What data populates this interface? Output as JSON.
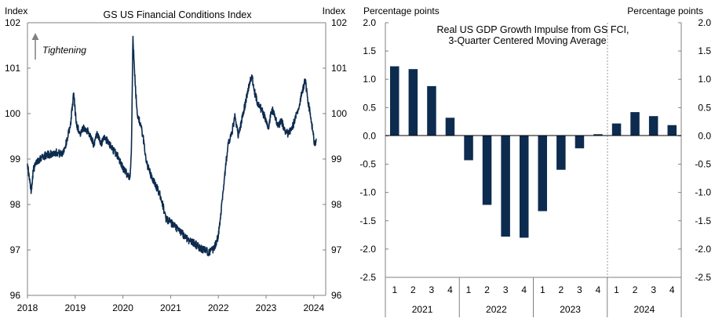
{
  "colors": {
    "series": "#0d2b4e",
    "axis": "#808080",
    "text": "#000000"
  },
  "left_chart": {
    "chart_data": {
      "type": "line",
      "title": "GS US Financial Conditions Index",
      "ylabel_left": "Index",
      "ylabel_right": "Index",
      "annotation": "Tightening",
      "ylim": [
        96,
        102
      ],
      "yticks": [
        96,
        97,
        98,
        99,
        100,
        101,
        102
      ],
      "xlim": [
        2018,
        2024.25
      ],
      "xticks": [
        2018,
        2019,
        2020,
        2021,
        2022,
        2023,
        2024
      ],
      "anchors": [
        [
          2018.0,
          98.9
        ],
        [
          2018.04,
          98.55
        ],
        [
          2018.08,
          98.3
        ],
        [
          2018.12,
          98.75
        ],
        [
          2018.2,
          98.95
        ],
        [
          2018.3,
          99.05
        ],
        [
          2018.45,
          99.1
        ],
        [
          2018.6,
          99.15
        ],
        [
          2018.72,
          99.1
        ],
        [
          2018.8,
          99.3
        ],
        [
          2018.9,
          99.75
        ],
        [
          2018.97,
          100.45
        ],
        [
          2019.02,
          99.8
        ],
        [
          2019.1,
          99.55
        ],
        [
          2019.2,
          99.7
        ],
        [
          2019.3,
          99.55
        ],
        [
          2019.4,
          99.3
        ],
        [
          2019.45,
          99.55
        ],
        [
          2019.55,
          99.3
        ],
        [
          2019.6,
          99.5
        ],
        [
          2019.7,
          99.35
        ],
        [
          2019.8,
          99.2
        ],
        [
          2019.9,
          99.05
        ],
        [
          2020.0,
          98.8
        ],
        [
          2020.1,
          98.65
        ],
        [
          2020.15,
          98.6
        ],
        [
          2020.18,
          99.3
        ],
        [
          2020.21,
          101.7
        ],
        [
          2020.23,
          101.2
        ],
        [
          2020.26,
          100.6
        ],
        [
          2020.3,
          100.0
        ],
        [
          2020.36,
          99.8
        ],
        [
          2020.42,
          99.5
        ],
        [
          2020.5,
          98.9
        ],
        [
          2020.6,
          98.6
        ],
        [
          2020.7,
          98.4
        ],
        [
          2020.8,
          98.15
        ],
        [
          2020.9,
          97.7
        ],
        [
          2021.0,
          97.6
        ],
        [
          2021.1,
          97.5
        ],
        [
          2021.2,
          97.4
        ],
        [
          2021.3,
          97.3
        ],
        [
          2021.4,
          97.2
        ],
        [
          2021.5,
          97.15
        ],
        [
          2021.6,
          97.05
        ],
        [
          2021.7,
          97.0
        ],
        [
          2021.8,
          96.95
        ],
        [
          2021.9,
          97.0
        ],
        [
          2022.0,
          97.3
        ],
        [
          2022.05,
          97.8
        ],
        [
          2022.1,
          98.3
        ],
        [
          2022.15,
          98.8
        ],
        [
          2022.2,
          99.3
        ],
        [
          2022.28,
          99.55
        ],
        [
          2022.35,
          99.95
        ],
        [
          2022.42,
          99.5
        ],
        [
          2022.5,
          99.9
        ],
        [
          2022.58,
          100.3
        ],
        [
          2022.64,
          100.6
        ],
        [
          2022.7,
          100.85
        ],
        [
          2022.75,
          100.5
        ],
        [
          2022.82,
          100.25
        ],
        [
          2022.9,
          100.1
        ],
        [
          2022.98,
          99.9
        ],
        [
          2023.05,
          99.7
        ],
        [
          2023.12,
          100.1
        ],
        [
          2023.18,
          100.0
        ],
        [
          2023.25,
          99.7
        ],
        [
          2023.32,
          99.85
        ],
        [
          2023.4,
          99.6
        ],
        [
          2023.47,
          99.55
        ],
        [
          2023.55,
          99.7
        ],
        [
          2023.62,
          99.9
        ],
        [
          2023.7,
          100.2
        ],
        [
          2023.76,
          100.5
        ],
        [
          2023.82,
          100.75
        ],
        [
          2023.87,
          100.35
        ],
        [
          2023.93,
          99.95
        ],
        [
          2023.98,
          99.6
        ],
        [
          2024.02,
          99.3
        ],
        [
          2024.05,
          99.45
        ]
      ]
    }
  },
  "right_chart": {
    "chart_data": {
      "type": "bar",
      "title": "Real US GDP Growth Impulse from GS FCI,",
      "subtitle": "3-Quarter Centered Moving Average",
      "ylabel_left": "Percentage  points",
      "ylabel_right": "Percentage  points",
      "ylim": [
        -2.5,
        2.0
      ],
      "yticks": [
        2.0,
        1.5,
        1.0,
        0.5,
        0.0,
        -0.5,
        -1.0,
        -1.5,
        -2.0,
        -2.5
      ],
      "categories": [
        "1",
        "2",
        "3",
        "4",
        "1",
        "2",
        "3",
        "4",
        "1",
        "2",
        "3",
        "4",
        "1",
        "2",
        "3",
        "4"
      ],
      "years": [
        "2021",
        "2022",
        "2023",
        "2024"
      ],
      "values": [
        1.23,
        1.18,
        0.88,
        0.32,
        -0.43,
        -1.22,
        -1.78,
        -1.8,
        -1.33,
        -0.6,
        -0.22,
        0.03,
        0.22,
        0.42,
        0.35,
        0.19
      ],
      "forecast_start_index": 12
    }
  }
}
